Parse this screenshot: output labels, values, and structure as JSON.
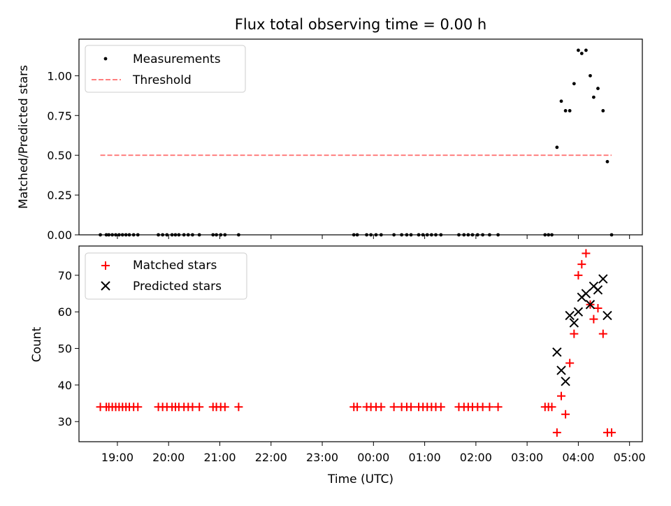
{
  "chart_data": [
    {
      "type": "scatter",
      "title": "Flux total observing time = 0.00 h",
      "xlabel": "",
      "ylabel": "Matched/Predicted stars",
      "xlim_hours": [
        18.25,
        29.25
      ],
      "ylim": [
        0,
        1.23
      ],
      "yticks": [
        "0.00",
        "0.25",
        "0.50",
        "0.75",
        "1.00"
      ],
      "legend_position": "upper-left",
      "series": [
        {
          "name": "Measurements",
          "marker": "dot",
          "color": "#000000",
          "points": [
            [
              18.667,
              0
            ],
            [
              18.783,
              0
            ],
            [
              18.833,
              0
            ],
            [
              18.9,
              0
            ],
            [
              18.967,
              0
            ],
            [
              19.033,
              0
            ],
            [
              19.1,
              0
            ],
            [
              19.167,
              0
            ],
            [
              19.233,
              0
            ],
            [
              19.317,
              0
            ],
            [
              19.4,
              0
            ],
            [
              19.8,
              0
            ],
            [
              19.883,
              0
            ],
            [
              19.967,
              0
            ],
            [
              20.067,
              0
            ],
            [
              20.133,
              0
            ],
            [
              20.2,
              0
            ],
            [
              20.3,
              0
            ],
            [
              20.383,
              0
            ],
            [
              20.467,
              0
            ],
            [
              20.6,
              0
            ],
            [
              20.867,
              0
            ],
            [
              20.933,
              0
            ],
            [
              21.017,
              0
            ],
            [
              21.1,
              0
            ],
            [
              21.367,
              0
            ],
            [
              23.617,
              0
            ],
            [
              23.683,
              0
            ],
            [
              23.867,
              0
            ],
            [
              23.95,
              0
            ],
            [
              24.05,
              0
            ],
            [
              24.15,
              0
            ],
            [
              24.4,
              0
            ],
            [
              24.55,
              0
            ],
            [
              24.65,
              0
            ],
            [
              24.733,
              0
            ],
            [
              24.883,
              0
            ],
            [
              24.967,
              0
            ],
            [
              25.05,
              0
            ],
            [
              25.133,
              0
            ],
            [
              25.217,
              0
            ],
            [
              25.317,
              0
            ],
            [
              25.667,
              0
            ],
            [
              25.767,
              0
            ],
            [
              25.85,
              0
            ],
            [
              25.933,
              0
            ],
            [
              26.033,
              0
            ],
            [
              26.133,
              0
            ],
            [
              26.267,
              0
            ],
            [
              26.433,
              0
            ],
            [
              27.35,
              0
            ],
            [
              27.417,
              0
            ],
            [
              27.483,
              0
            ],
            [
              27.583,
              0.55
            ],
            [
              27.667,
              0.84
            ],
            [
              27.75,
              0.78
            ],
            [
              27.833,
              0.78
            ],
            [
              27.917,
              0.95
            ],
            [
              28.0,
              1.16
            ],
            [
              28.067,
              1.14
            ],
            [
              28.15,
              1.16
            ],
            [
              28.233,
              1.0
            ],
            [
              28.3,
              0.865
            ],
            [
              28.383,
              0.92
            ],
            [
              28.483,
              0.78
            ],
            [
              28.567,
              0.46
            ],
            [
              28.65,
              0
            ]
          ]
        },
        {
          "name": "Threshold",
          "marker": "dashed-line",
          "color": "#ff7f7f",
          "points": [
            [
              18.667,
              0.5
            ],
            [
              28.65,
              0.5
            ]
          ]
        }
      ]
    },
    {
      "type": "scatter",
      "title": "",
      "xlabel": "Time (UTC)",
      "ylabel": "Count",
      "xlim_hours": [
        18.25,
        29.25
      ],
      "ylim": [
        24.5,
        78
      ],
      "yticks": [
        "30",
        "40",
        "50",
        "60",
        "70"
      ],
      "xticks": [
        "19:00",
        "20:00",
        "21:00",
        "22:00",
        "23:00",
        "00:00",
        "01:00",
        "02:00",
        "03:00",
        "04:00",
        "05:00"
      ],
      "legend_position": "upper-left",
      "series": [
        {
          "name": "Matched stars",
          "marker": "plus",
          "color": "#ff0000",
          "points": [
            [
              18.667,
              34
            ],
            [
              18.783,
              34
            ],
            [
              18.833,
              34
            ],
            [
              18.9,
              34
            ],
            [
              18.967,
              34
            ],
            [
              19.033,
              34
            ],
            [
              19.1,
              34
            ],
            [
              19.167,
              34
            ],
            [
              19.233,
              34
            ],
            [
              19.317,
              34
            ],
            [
              19.4,
              34
            ],
            [
              19.8,
              34
            ],
            [
              19.883,
              34
            ],
            [
              19.967,
              34
            ],
            [
              20.067,
              34
            ],
            [
              20.133,
              34
            ],
            [
              20.2,
              34
            ],
            [
              20.3,
              34
            ],
            [
              20.383,
              34
            ],
            [
              20.467,
              34
            ],
            [
              20.6,
              34
            ],
            [
              20.867,
              34
            ],
            [
              20.933,
              34
            ],
            [
              21.017,
              34
            ],
            [
              21.1,
              34
            ],
            [
              21.367,
              34
            ],
            [
              23.617,
              34
            ],
            [
              23.683,
              34
            ],
            [
              23.867,
              34
            ],
            [
              23.95,
              34
            ],
            [
              24.05,
              34
            ],
            [
              24.15,
              34
            ],
            [
              24.4,
              34
            ],
            [
              24.55,
              34
            ],
            [
              24.65,
              34
            ],
            [
              24.733,
              34
            ],
            [
              24.883,
              34
            ],
            [
              24.967,
              34
            ],
            [
              25.05,
              34
            ],
            [
              25.133,
              34
            ],
            [
              25.217,
              34
            ],
            [
              25.317,
              34
            ],
            [
              25.667,
              34
            ],
            [
              25.767,
              34
            ],
            [
              25.85,
              34
            ],
            [
              25.933,
              34
            ],
            [
              26.033,
              34
            ],
            [
              26.133,
              34
            ],
            [
              26.267,
              34
            ],
            [
              26.433,
              34
            ],
            [
              27.35,
              34
            ],
            [
              27.417,
              34
            ],
            [
              27.483,
              34
            ],
            [
              27.583,
              27
            ],
            [
              27.667,
              37
            ],
            [
              27.75,
              32
            ],
            [
              27.833,
              46
            ],
            [
              27.917,
              54
            ],
            [
              28.0,
              70
            ],
            [
              28.067,
              73
            ],
            [
              28.15,
              76
            ],
            [
              28.233,
              62
            ],
            [
              28.3,
              58
            ],
            [
              28.383,
              61
            ],
            [
              28.483,
              54
            ],
            [
              28.567,
              27
            ],
            [
              28.65,
              27
            ]
          ]
        },
        {
          "name": "Predicted stars",
          "marker": "x",
          "color": "#000000",
          "points": [
            [
              27.583,
              49
            ],
            [
              27.667,
              44
            ],
            [
              27.75,
              41
            ],
            [
              27.833,
              59
            ],
            [
              27.917,
              57
            ],
            [
              28.0,
              60
            ],
            [
              28.067,
              64
            ],
            [
              28.15,
              65
            ],
            [
              28.233,
              62
            ],
            [
              28.3,
              67
            ],
            [
              28.383,
              66
            ],
            [
              28.483,
              69
            ],
            [
              28.567,
              59
            ]
          ]
        }
      ]
    }
  ]
}
